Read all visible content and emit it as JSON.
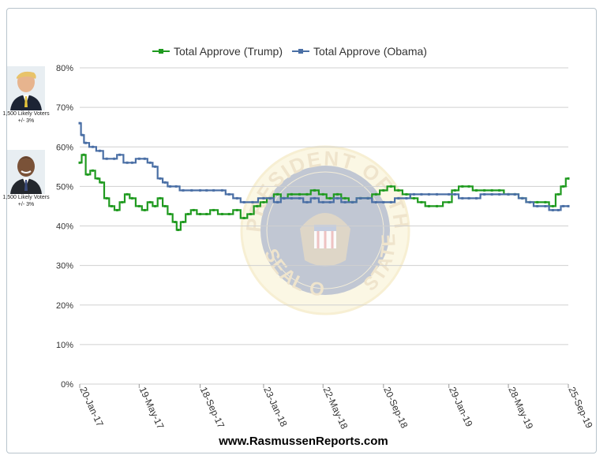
{
  "site_url": "www.RasmussenReports.com",
  "sidebar": {
    "trump": {
      "voters": "1,500 Likely Voters",
      "margin": "+/- 3%"
    },
    "obama": {
      "voters": "1,500 Likely Voters",
      "margin": "+/- 3%"
    }
  },
  "seal": {
    "text_top": "PRESIDENT OF THE UNITED",
    "text_bottom": "SEAL OF THE",
    "text_side": "STATES"
  },
  "colors": {
    "trump": "#1f9a1f",
    "obama": "#4a6fa5",
    "grid": "#d0d0d0"
  },
  "chart_data": {
    "type": "line",
    "title": "",
    "xlabel": "",
    "ylabel": "",
    "ylim": [
      0,
      80
    ],
    "ytick_labels": [
      "0%",
      "10%",
      "20%",
      "30%",
      "40%",
      "50%",
      "60%",
      "70%",
      "80%"
    ],
    "xlim": [
      "2017-01-20",
      "2019-09-25"
    ],
    "xtick_labels": [
      "20-Jan-17",
      "19-May-17",
      "18-Sep-17",
      "23-Jan-18",
      "22-May-18",
      "20-Sep-18",
      "29-Jan-19",
      "28-May-19",
      "25-Sep-19"
    ],
    "xtick_dates": [
      "2017-01-20",
      "2017-05-19",
      "2017-09-18",
      "2018-01-23",
      "2018-05-22",
      "2018-09-20",
      "2019-01-29",
      "2019-05-28",
      "2019-09-25"
    ],
    "legend_position": "top-center",
    "grid": true,
    "series": [
      {
        "name": "Total Approve (Trump)",
        "color": "#1f9a1f",
        "points": [
          [
            "2017-01-20",
            56
          ],
          [
            "2017-01-28",
            58
          ],
          [
            "2017-02-05",
            53
          ],
          [
            "2017-02-15",
            54
          ],
          [
            "2017-02-25",
            52
          ],
          [
            "2017-03-05",
            51
          ],
          [
            "2017-03-15",
            47
          ],
          [
            "2017-03-25",
            45
          ],
          [
            "2017-04-05",
            44
          ],
          [
            "2017-04-15",
            46
          ],
          [
            "2017-04-25",
            48
          ],
          [
            "2017-05-05",
            47
          ],
          [
            "2017-05-19",
            45
          ],
          [
            "2017-05-30",
            44
          ],
          [
            "2017-06-10",
            46
          ],
          [
            "2017-06-20",
            45
          ],
          [
            "2017-06-30",
            47
          ],
          [
            "2017-07-10",
            45
          ],
          [
            "2017-07-20",
            43
          ],
          [
            "2017-07-30",
            41
          ],
          [
            "2017-08-05",
            39
          ],
          [
            "2017-08-15",
            41
          ],
          [
            "2017-08-25",
            43
          ],
          [
            "2017-09-05",
            44
          ],
          [
            "2017-09-18",
            43
          ],
          [
            "2017-10-01",
            43
          ],
          [
            "2017-10-15",
            44
          ],
          [
            "2017-11-01",
            43
          ],
          [
            "2017-11-15",
            43
          ],
          [
            "2017-12-01",
            44
          ],
          [
            "2017-12-15",
            42
          ],
          [
            "2017-12-28",
            43
          ],
          [
            "2018-01-10",
            45
          ],
          [
            "2018-01-23",
            46
          ],
          [
            "2018-02-05",
            47
          ],
          [
            "2018-02-20",
            48
          ],
          [
            "2018-03-05",
            47
          ],
          [
            "2018-03-20",
            48
          ],
          [
            "2018-04-05",
            48
          ],
          [
            "2018-04-20",
            48
          ],
          [
            "2018-05-05",
            49
          ],
          [
            "2018-05-22",
            48
          ],
          [
            "2018-06-05",
            47
          ],
          [
            "2018-06-20",
            48
          ],
          [
            "2018-07-05",
            47
          ],
          [
            "2018-07-20",
            46
          ],
          [
            "2018-08-05",
            47
          ],
          [
            "2018-08-20",
            47
          ],
          [
            "2018-09-05",
            48
          ],
          [
            "2018-09-20",
            49
          ],
          [
            "2018-10-05",
            50
          ],
          [
            "2018-10-20",
            49
          ],
          [
            "2018-11-05",
            48
          ],
          [
            "2018-11-20",
            47
          ],
          [
            "2018-12-05",
            46
          ],
          [
            "2018-12-20",
            45
          ],
          [
            "2019-01-05",
            45
          ],
          [
            "2019-01-29",
            46
          ],
          [
            "2019-02-10",
            49
          ],
          [
            "2019-02-25",
            50
          ],
          [
            "2019-03-10",
            50
          ],
          [
            "2019-03-25",
            49
          ],
          [
            "2019-04-10",
            49
          ],
          [
            "2019-04-25",
            49
          ],
          [
            "2019-05-10",
            49
          ],
          [
            "2019-05-28",
            48
          ],
          [
            "2019-06-10",
            48
          ],
          [
            "2019-06-25",
            47
          ],
          [
            "2019-07-10",
            46
          ],
          [
            "2019-07-25",
            46
          ],
          [
            "2019-08-10",
            46
          ],
          [
            "2019-08-25",
            45
          ],
          [
            "2019-09-05",
            48
          ],
          [
            "2019-09-15",
            50
          ],
          [
            "2019-09-25",
            52
          ]
        ]
      },
      {
        "name": "Total Approve (Obama)",
        "color": "#4a6fa5",
        "points": [
          [
            "2017-01-20",
            66
          ],
          [
            "2017-01-25",
            63
          ],
          [
            "2017-02-01",
            61
          ],
          [
            "2017-02-15",
            60
          ],
          [
            "2017-03-01",
            59
          ],
          [
            "2017-03-15",
            57
          ],
          [
            "2017-03-30",
            57
          ],
          [
            "2017-04-10",
            58
          ],
          [
            "2017-04-25",
            56
          ],
          [
            "2017-05-05",
            56
          ],
          [
            "2017-05-19",
            57
          ],
          [
            "2017-05-30",
            57
          ],
          [
            "2017-06-10",
            56
          ],
          [
            "2017-06-20",
            55
          ],
          [
            "2017-06-30",
            52
          ],
          [
            "2017-07-10",
            51
          ],
          [
            "2017-07-20",
            50
          ],
          [
            "2017-08-01",
            50
          ],
          [
            "2017-08-15",
            49
          ],
          [
            "2017-09-01",
            49
          ],
          [
            "2017-09-18",
            49
          ],
          [
            "2017-10-01",
            49
          ],
          [
            "2017-10-15",
            49
          ],
          [
            "2017-11-01",
            49
          ],
          [
            "2017-11-15",
            48
          ],
          [
            "2017-12-01",
            47
          ],
          [
            "2017-12-15",
            46
          ],
          [
            "2018-01-01",
            46
          ],
          [
            "2018-01-23",
            47
          ],
          [
            "2018-02-05",
            47
          ],
          [
            "2018-02-20",
            46
          ],
          [
            "2018-03-05",
            47
          ],
          [
            "2018-03-20",
            47
          ],
          [
            "2018-04-05",
            47
          ],
          [
            "2018-04-20",
            46
          ],
          [
            "2018-05-05",
            47
          ],
          [
            "2018-05-22",
            46
          ],
          [
            "2018-06-05",
            46
          ],
          [
            "2018-06-20",
            47
          ],
          [
            "2018-07-05",
            46
          ],
          [
            "2018-07-20",
            46
          ],
          [
            "2018-08-05",
            47
          ],
          [
            "2018-08-20",
            47
          ],
          [
            "2018-09-05",
            46
          ],
          [
            "2018-09-20",
            46
          ],
          [
            "2018-10-05",
            46
          ],
          [
            "2018-10-20",
            47
          ],
          [
            "2018-11-05",
            47
          ],
          [
            "2018-11-20",
            48
          ],
          [
            "2018-12-05",
            48
          ],
          [
            "2018-12-20",
            48
          ],
          [
            "2019-01-05",
            48
          ],
          [
            "2019-01-29",
            48
          ],
          [
            "2019-02-10",
            48
          ],
          [
            "2019-02-25",
            47
          ],
          [
            "2019-03-10",
            47
          ],
          [
            "2019-03-25",
            47
          ],
          [
            "2019-04-10",
            48
          ],
          [
            "2019-04-25",
            48
          ],
          [
            "2019-05-10",
            48
          ],
          [
            "2019-05-28",
            48
          ],
          [
            "2019-06-10",
            48
          ],
          [
            "2019-06-25",
            47
          ],
          [
            "2019-07-10",
            46
          ],
          [
            "2019-07-25",
            45
          ],
          [
            "2019-08-10",
            45
          ],
          [
            "2019-08-25",
            44
          ],
          [
            "2019-09-05",
            44
          ],
          [
            "2019-09-15",
            45
          ],
          [
            "2019-09-25",
            45
          ]
        ]
      }
    ]
  }
}
